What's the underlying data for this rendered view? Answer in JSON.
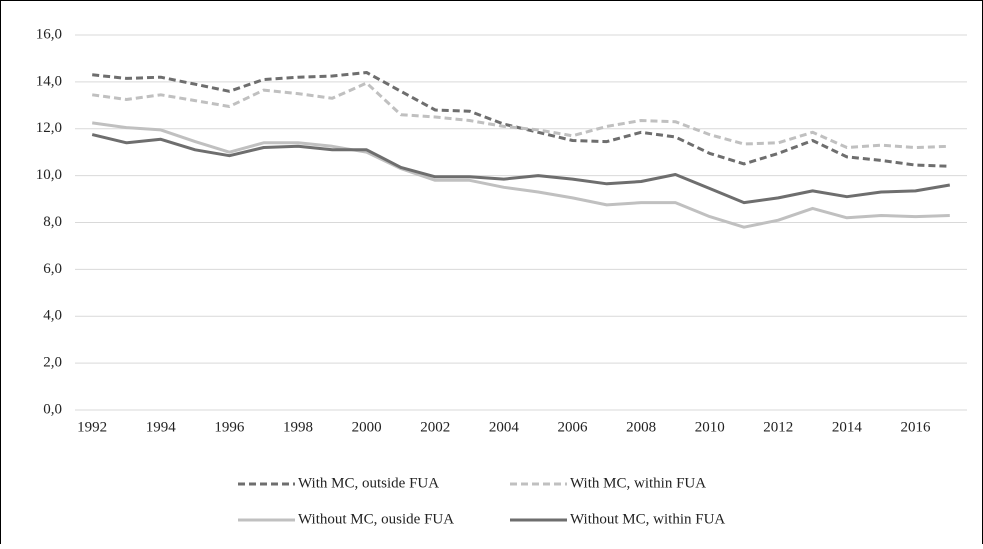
{
  "chart_data": {
    "type": "line",
    "categories": [
      "1992",
      null,
      "1994",
      null,
      "1996",
      null,
      "1998",
      null,
      "2000",
      null,
      "2002",
      null,
      "2004",
      null,
      "2006",
      null,
      "2008",
      null,
      "2010",
      null,
      "2012",
      null,
      "2014",
      null,
      "2016",
      null
    ],
    "ylim": [
      0,
      16
    ],
    "yticks": [
      {
        "value": 0,
        "label": "0,0"
      },
      {
        "value": 2,
        "label": "2,0"
      },
      {
        "value": 4,
        "label": "4,0"
      },
      {
        "value": 6,
        "label": "6,0"
      },
      {
        "value": 8,
        "label": "8,0"
      },
      {
        "value": 10,
        "label": "10,0"
      },
      {
        "value": 12,
        "label": "12,0"
      },
      {
        "value": 14,
        "label": "14,0"
      },
      {
        "value": 16,
        "label": "16,0"
      }
    ],
    "grid": true,
    "series": [
      {
        "name": "With MC, outside FUA",
        "color": "#6e6e6e",
        "dashed": true,
        "values": [
          14.3,
          14.15,
          14.2,
          13.9,
          13.6,
          14.1,
          14.2,
          14.25,
          14.4,
          13.6,
          12.8,
          12.75,
          12.2,
          11.85,
          11.5,
          11.45,
          11.85,
          11.65,
          10.95,
          10.5,
          10.95,
          11.5,
          10.8,
          10.65,
          10.45,
          10.4
        ]
      },
      {
        "name": "With MC, within FUA",
        "color": "#c0c0c0",
        "dashed": true,
        "values": [
          13.45,
          13.25,
          13.45,
          13.2,
          12.95,
          13.65,
          13.5,
          13.3,
          13.95,
          12.6,
          12.5,
          12.35,
          12.1,
          11.95,
          11.7,
          12.1,
          12.35,
          12.3,
          11.75,
          11.35,
          11.4,
          11.85,
          11.2,
          11.3,
          11.2,
          11.25
        ]
      },
      {
        "name": "Without MC, ouside FUA",
        "color": "#c0c0c0",
        "dashed": false,
        "values": [
          12.25,
          12.05,
          11.95,
          11.45,
          11.0,
          11.4,
          11.4,
          11.25,
          11.0,
          10.3,
          9.8,
          9.8,
          9.5,
          9.3,
          9.05,
          8.75,
          8.85,
          8.85,
          8.25,
          7.8,
          8.1,
          8.6,
          8.2,
          8.3,
          8.25,
          8.3
        ]
      },
      {
        "name": "Without MC, within FUA",
        "color": "#6e6e6e",
        "dashed": false,
        "values": [
          11.75,
          11.4,
          11.55,
          11.1,
          10.85,
          11.2,
          11.25,
          11.1,
          11.1,
          10.35,
          9.95,
          9.95,
          9.85,
          10.0,
          9.85,
          9.65,
          9.75,
          10.05,
          9.45,
          8.85,
          9.05,
          9.35,
          9.1,
          9.3,
          9.35,
          9.6
        ]
      }
    ]
  }
}
